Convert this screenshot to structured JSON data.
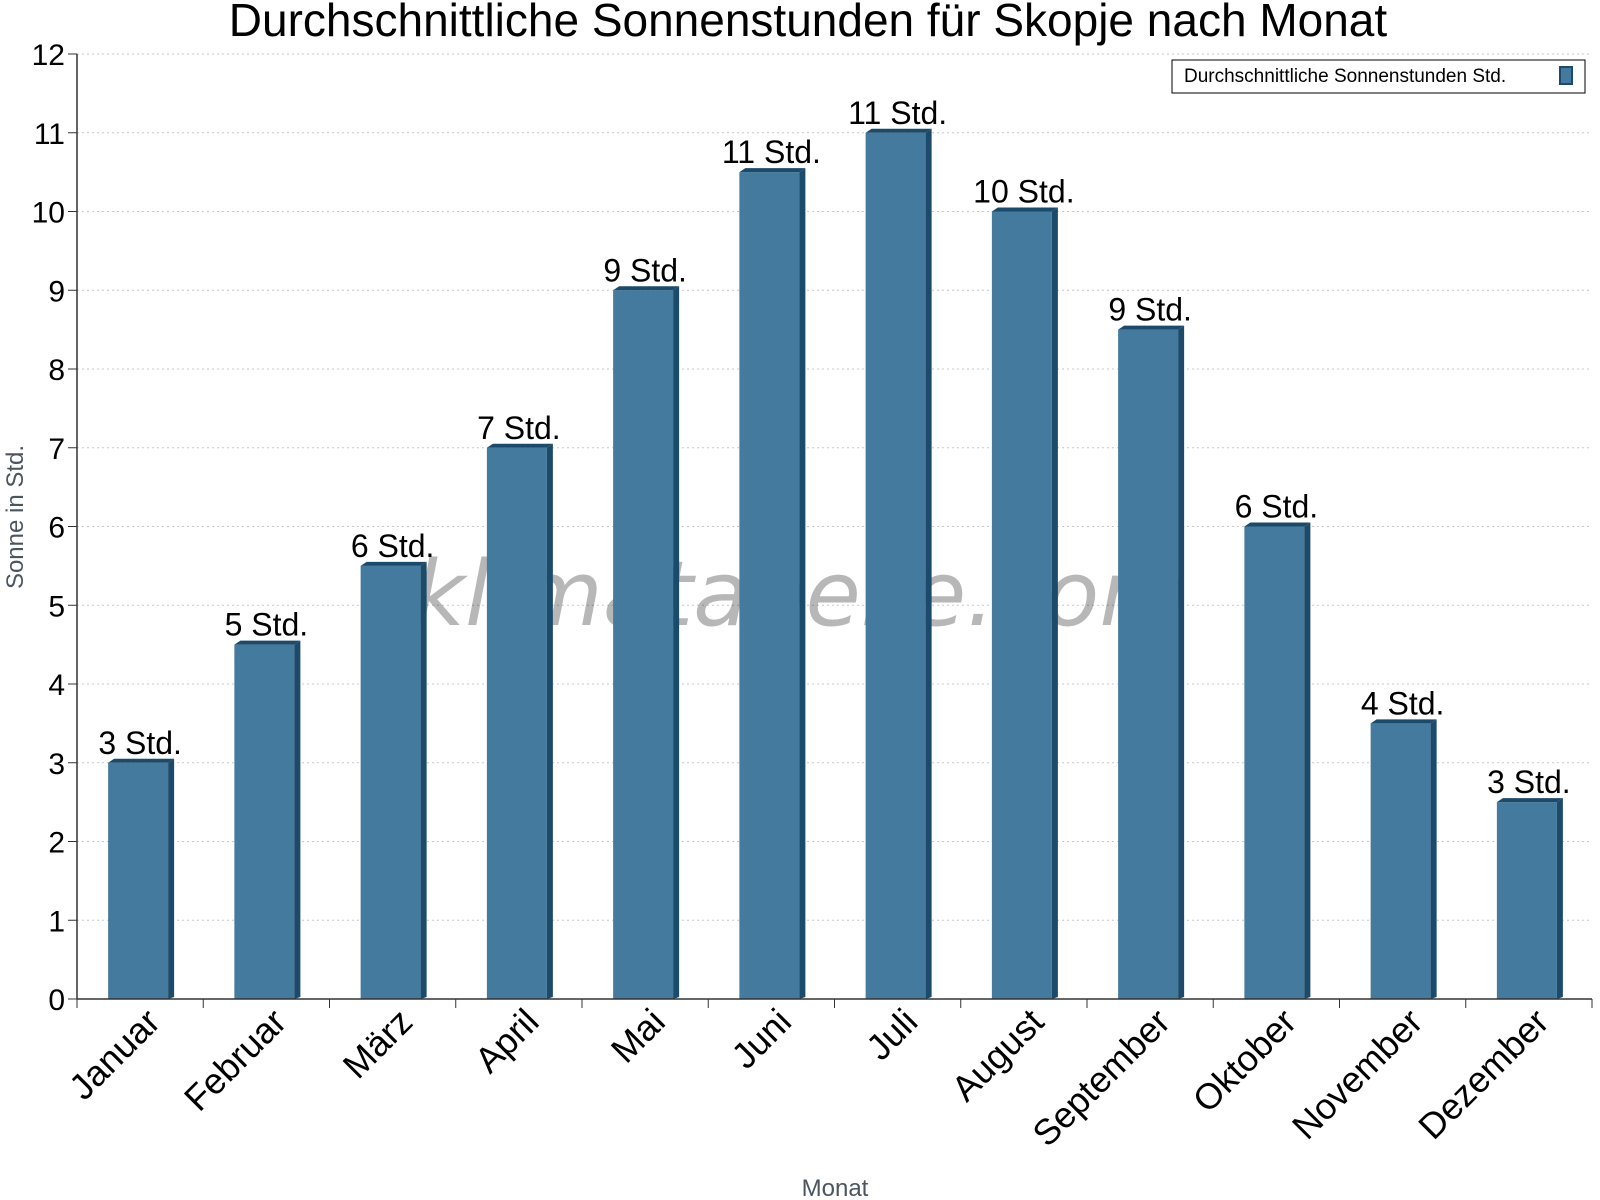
{
  "chart_data": {
    "type": "bar",
    "title": "Durchschnittliche Sonnenstunden für Skopje nach Monat",
    "xlabel": "Monat",
    "ylabel": "Sonne in Std.",
    "ylim": [
      0,
      12
    ],
    "yticks": [
      "0",
      "1",
      "2",
      "3",
      "4",
      "5",
      "6",
      "7",
      "8",
      "9",
      "10",
      "11",
      "12"
    ],
    "grid": true,
    "legend_position": "top-right",
    "categories": [
      "Januar",
      "Februar",
      "März",
      "April",
      "Mai",
      "Juni",
      "Juli",
      "August",
      "September",
      "Oktober",
      "November",
      "Dezember"
    ],
    "series": [
      {
        "name": "Durchschnittliche Sonnenstunden Std.",
        "color": "#447a9e",
        "values": [
          3,
          4.5,
          5.5,
          7,
          9,
          10.5,
          11,
          10,
          8.5,
          6,
          3.5,
          2.5
        ],
        "labels": [
          "3 Std.",
          "5 Std.",
          "6 Std.",
          "7 Std.",
          "9 Std.",
          "11 Std.",
          "11 Std.",
          "10 Std.",
          "9 Std.",
          "6 Std.",
          "4 Std.",
          "3 Std."
        ]
      }
    ],
    "watermark": "klimatabelle.com"
  }
}
